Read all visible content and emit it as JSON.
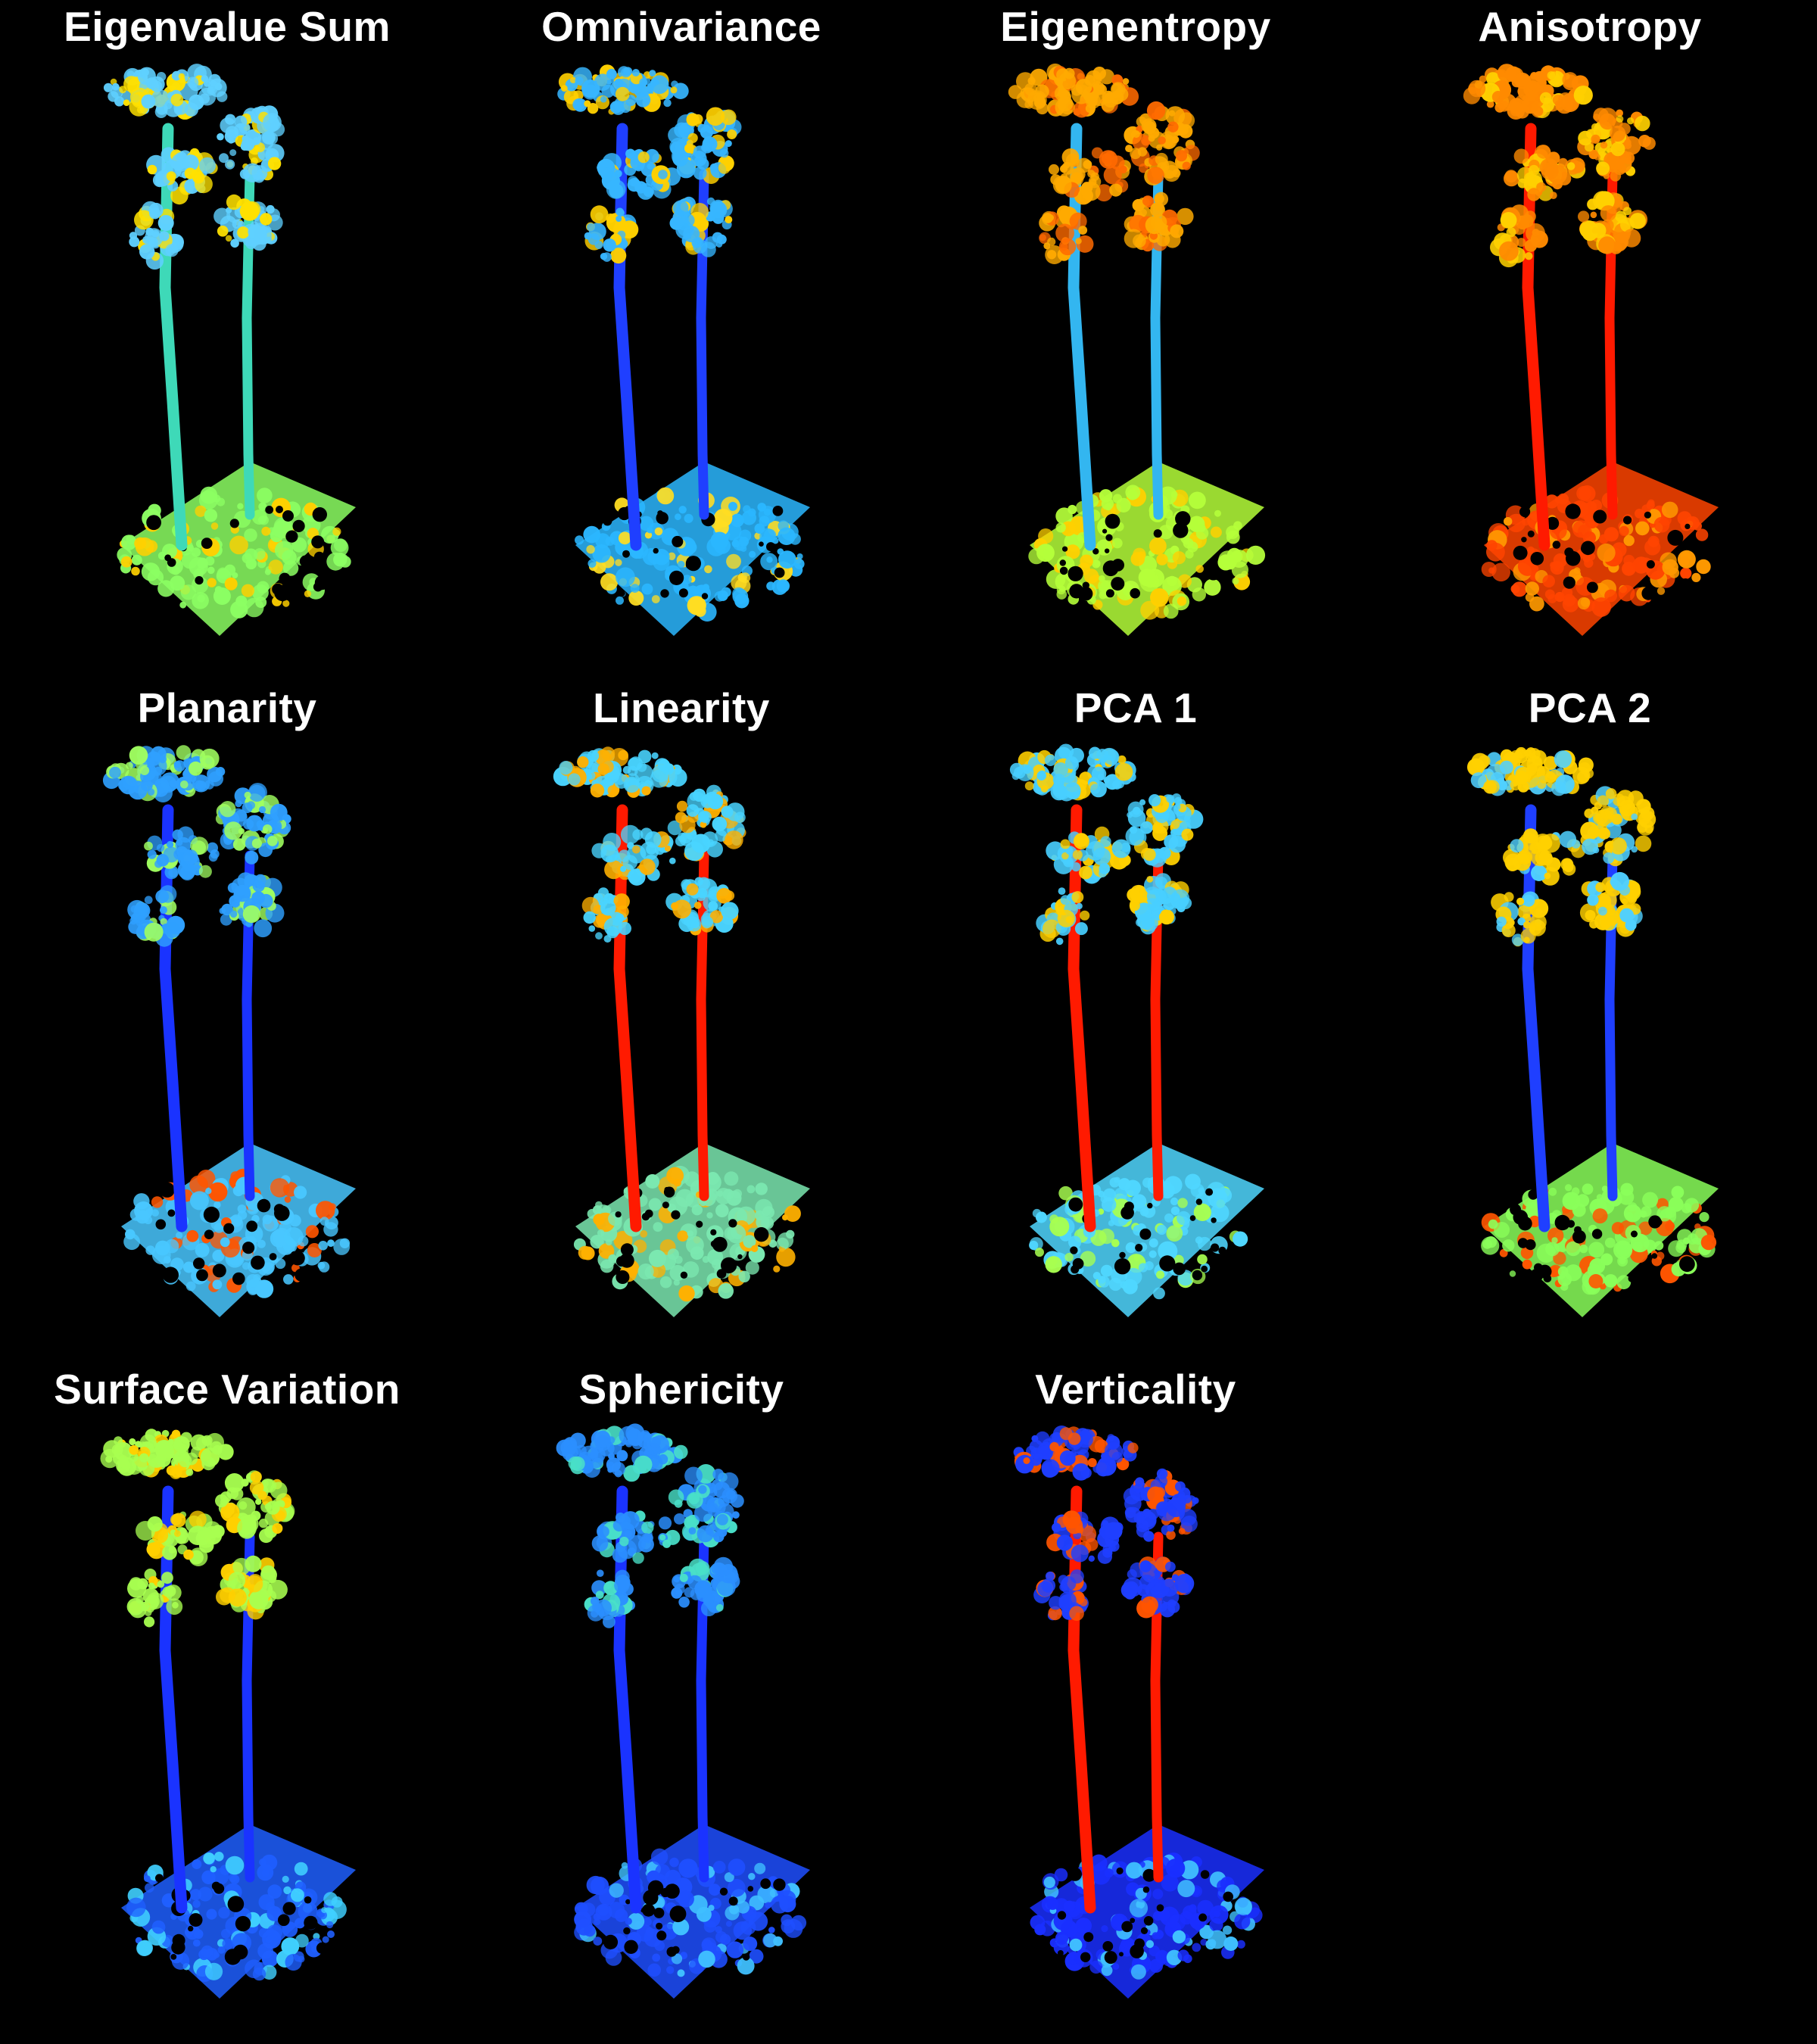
{
  "figure": {
    "background": "#000000",
    "colormap": "jet",
    "panels": [
      {
        "title": "Eigenvalue Sum",
        "trunk": "#3ed9b8",
        "crown": "#5fd0ff",
        "crown_accent": "#ffe100",
        "ground": "#8cff63",
        "ground_accent": "#ffd000"
      },
      {
        "title": "Omnivariance",
        "trunk": "#1f3fff",
        "crown": "#37b6ff",
        "crown_accent": "#ffd000",
        "ground": "#2bb7ff",
        "ground_accent": "#ffdd22"
      },
      {
        "title": "Eigenentropy",
        "trunk": "#33b6f0",
        "crown": "#ffaa00",
        "crown_accent": "#ff6a00",
        "ground": "#b5ff3a",
        "ground_accent": "#ffd000"
      },
      {
        "title": "Anisotropy",
        "trunk": "#ff1a00",
        "crown": "#ff8a00",
        "crown_accent": "#ffd000",
        "ground": "#ff4400",
        "ground_accent": "#ff9900"
      },
      {
        "title": "Planarity",
        "trunk": "#1a33ff",
        "crown": "#2fa0ff",
        "crown_accent": "#a0ff60",
        "ground": "#49c7ff",
        "ground_accent": "#ff5500"
      },
      {
        "title": "Linearity",
        "trunk": "#ff1a00",
        "crown": "#49d4ff",
        "crown_accent": "#ffb000",
        "ground": "#7be8b0",
        "ground_accent": "#ffb000"
      },
      {
        "title": "PCA 1",
        "trunk": "#ff1a00",
        "crown": "#48cfff",
        "crown_accent": "#ffd000",
        "ground": "#50d7ff",
        "ground_accent": "#a8ff50"
      },
      {
        "title": "PCA 2",
        "trunk": "#1f3fff",
        "crown": "#ffd000",
        "crown_accent": "#50d0ff",
        "ground": "#8aff5a",
        "ground_accent": "#ff5500"
      },
      {
        "title": "Surface Variation",
        "trunk": "#1a33ff",
        "crown": "#a8ff50",
        "crown_accent": "#ffd000",
        "ground": "#1f5fff",
        "ground_accent": "#40d0ff"
      },
      {
        "title": "Sphericity",
        "trunk": "#1a33ff",
        "crown": "#2b8fff",
        "crown_accent": "#49e0c8",
        "ground": "#1f4fff",
        "ground_accent": "#40c0ff"
      },
      {
        "title": "Verticality",
        "trunk": "#ff1a00",
        "crown": "#1f3fff",
        "crown_accent": "#ff5500",
        "ground": "#1a2fff",
        "ground_accent": "#40c0ff"
      }
    ]
  }
}
